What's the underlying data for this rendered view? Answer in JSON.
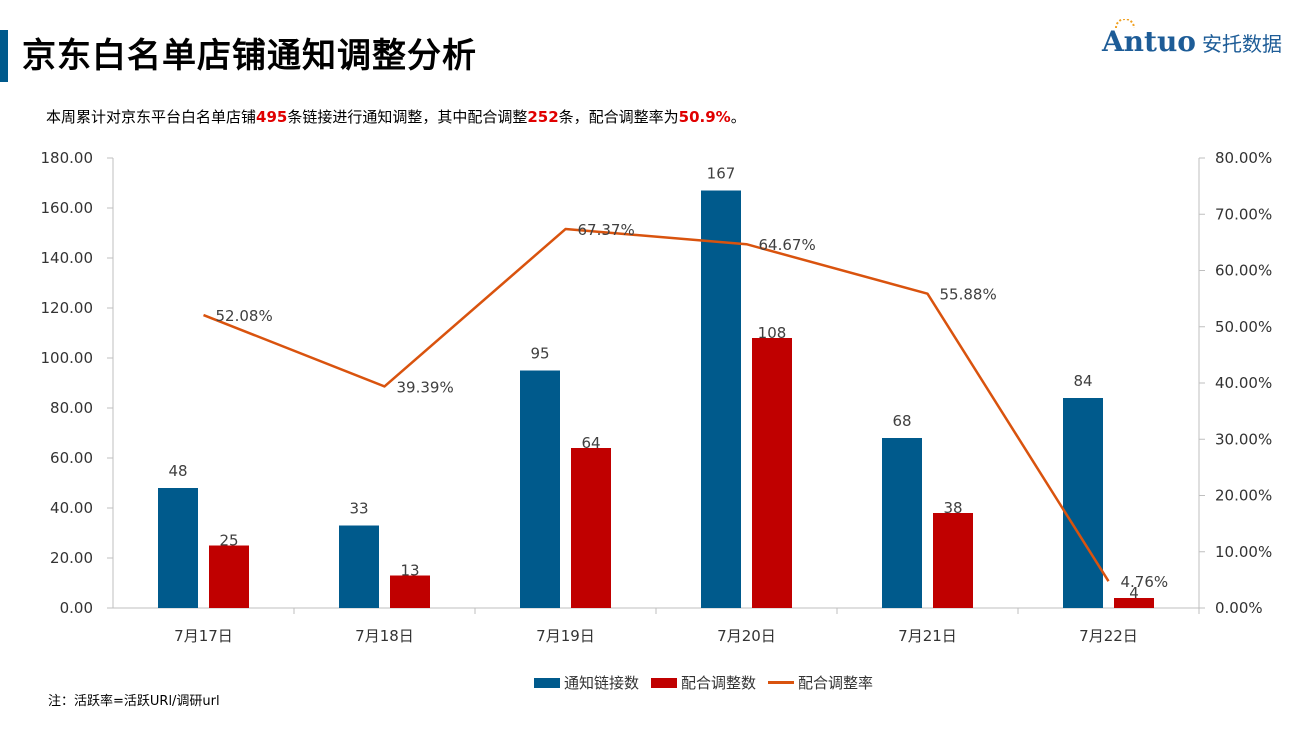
{
  "header": {
    "title": "京东白名单店铺通知调整分析",
    "logo_brand": "Antuo",
    "logo_cn": "安托数据"
  },
  "summary": {
    "part1": "本周累计对京东平台白名单店铺",
    "total": "495",
    "part2": "条链接进行通知调整，其中配合调整",
    "cooperated": "252",
    "part3": "条，配合调整率为",
    "rate": "50.9%",
    "part4": "。"
  },
  "colors": {
    "bar_notice": "#005a8c",
    "bar_adjust": "#c00000",
    "line_rate": "#d9530e"
  },
  "chart_data": {
    "type": "bar",
    "categories": [
      "7月17日",
      "7月18日",
      "7月19日",
      "7月20日",
      "7月21日",
      "7月22日"
    ],
    "series": [
      {
        "name": "通知链接数",
        "type": "bar",
        "axis": "left",
        "values": [
          48,
          33,
          95,
          167,
          68,
          84
        ],
        "labels": [
          "48",
          "33",
          "95",
          "167",
          "68",
          "84"
        ]
      },
      {
        "name": "配合调整数",
        "type": "bar",
        "axis": "left",
        "values": [
          25,
          13,
          64,
          108,
          38,
          4
        ],
        "labels": [
          "25",
          "13",
          "64",
          "108",
          "38",
          "4"
        ]
      },
      {
        "name": "配合调整率",
        "type": "line",
        "axis": "right",
        "values": [
          52.08,
          39.39,
          67.37,
          64.67,
          55.88,
          4.76
        ],
        "labels": [
          "52.08%",
          "39.39%",
          "67.37%",
          "64.67%",
          "55.88%",
          "4.76%"
        ]
      }
    ],
    "y_left": {
      "min": 0,
      "max": 180,
      "ticks": [
        "0.00",
        "20.00",
        "40.00",
        "60.00",
        "80.00",
        "100.00",
        "120.00",
        "140.00",
        "160.00",
        "180.00"
      ]
    },
    "y_right": {
      "min": 0,
      "max": 80,
      "ticks": [
        "0.00%",
        "10.00%",
        "20.00%",
        "30.00%",
        "40.00%",
        "50.00%",
        "60.00%",
        "70.00%",
        "80.00%"
      ]
    },
    "grid": false,
    "legend_position": "bottom"
  },
  "legend": {
    "notice": "通知链接数",
    "adjust": "配合调整数",
    "rate": "配合调整率"
  },
  "footnote": "注：活跃率=活跃URl/调研url"
}
